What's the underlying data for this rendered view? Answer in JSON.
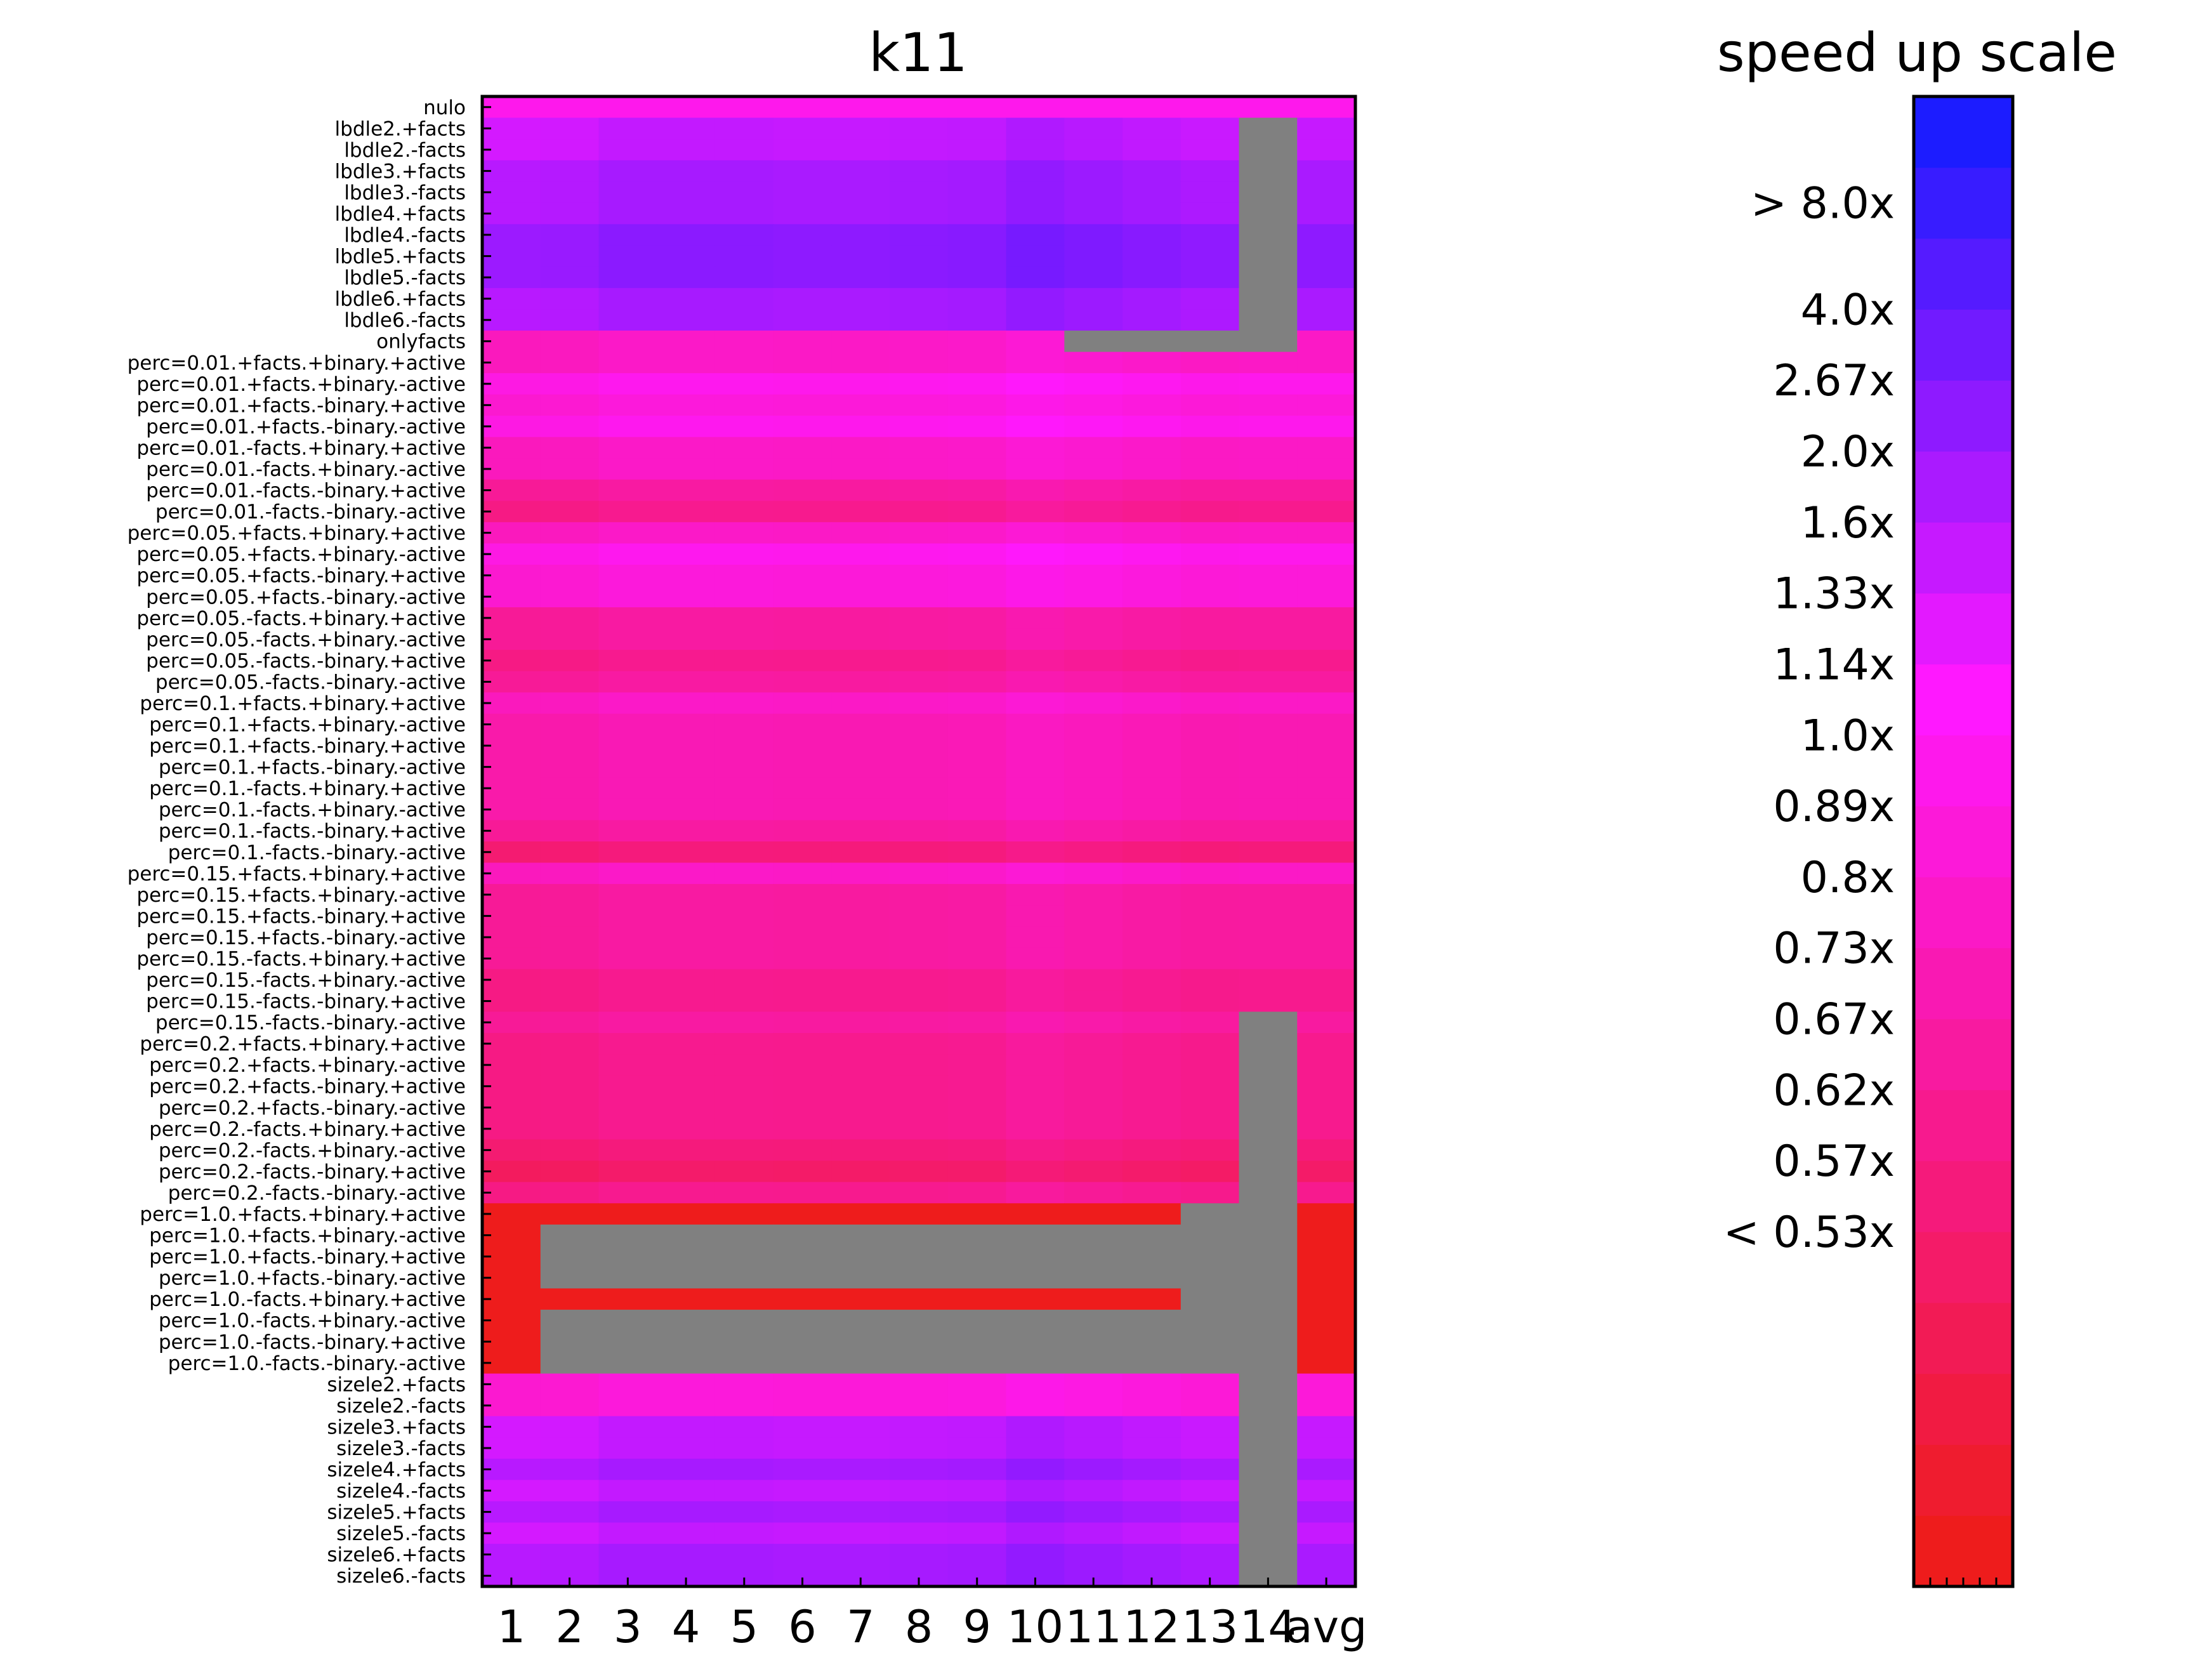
{
  "chart_data": {
    "type": "heatmap",
    "title": "k11",
    "columns": [
      "1",
      "2",
      "3",
      "4",
      "5",
      "6",
      "7",
      "8",
      "9",
      "10",
      "11",
      "12",
      "13",
      "14",
      "avg"
    ],
    "rows": [
      "nulo",
      "lbdle2.+facts",
      "lbdle2.-facts",
      "lbdle3.+facts",
      "lbdle3.-facts",
      "lbdle4.+facts",
      "lbdle4.-facts",
      "lbdle5.+facts",
      "lbdle5.-facts",
      "lbdle6.+facts",
      "lbdle6.-facts",
      "onlyfacts",
      "perc=0.01.+facts.+binary.+active",
      "perc=0.01.+facts.+binary.-active",
      "perc=0.01.+facts.-binary.+active",
      "perc=0.01.+facts.-binary.-active",
      "perc=0.01.-facts.+binary.+active",
      "perc=0.01.-facts.+binary.-active",
      "perc=0.01.-facts.-binary.+active",
      "perc=0.01.-facts.-binary.-active",
      "perc=0.05.+facts.+binary.+active",
      "perc=0.05.+facts.+binary.-active",
      "perc=0.05.+facts.-binary.+active",
      "perc=0.05.+facts.-binary.-active",
      "perc=0.05.-facts.+binary.+active",
      "perc=0.05.-facts.+binary.-active",
      "perc=0.05.-facts.-binary.+active",
      "perc=0.05.-facts.-binary.-active",
      "perc=0.1.+facts.+binary.+active",
      "perc=0.1.+facts.+binary.-active",
      "perc=0.1.+facts.-binary.+active",
      "perc=0.1.+facts.-binary.-active",
      "perc=0.1.-facts.+binary.+active",
      "perc=0.1.-facts.+binary.-active",
      "perc=0.1.-facts.-binary.+active",
      "perc=0.1.-facts.-binary.-active",
      "perc=0.15.+facts.+binary.+active",
      "perc=0.15.+facts.+binary.-active",
      "perc=0.15.+facts.-binary.+active",
      "perc=0.15.+facts.-binary.-active",
      "perc=0.15.-facts.+binary.+active",
      "perc=0.15.-facts.+binary.-active",
      "perc=0.15.-facts.-binary.+active",
      "perc=0.15.-facts.-binary.-active",
      "perc=0.2.+facts.+binary.+active",
      "perc=0.2.+facts.+binary.-active",
      "perc=0.2.+facts.-binary.+active",
      "perc=0.2.+facts.-binary.-active",
      "perc=0.2.-facts.+binary.+active",
      "perc=0.2.-facts.+binary.-active",
      "perc=0.2.-facts.-binary.+active",
      "perc=0.2.-facts.-binary.-active",
      "perc=1.0.+facts.+binary.+active",
      "perc=1.0.+facts.+binary.-active",
      "perc=1.0.+facts.-binary.+active",
      "perc=1.0.+facts.-binary.-active",
      "perc=1.0.-facts.+binary.+active",
      "perc=1.0.-facts.+binary.-active",
      "perc=1.0.-facts.-binary.+active",
      "perc=1.0.-facts.-binary.-active",
      "sizele2.+facts",
      "sizele2.-facts",
      "sizele3.+facts",
      "sizele3.-facts",
      "sizele4.+facts",
      "sizele4.-facts",
      "sizele5.+facts",
      "sizele5.-facts",
      "sizele6.+facts",
      "sizele6.-facts"
    ],
    "row_levels": [
      9,
      14,
      14,
      15,
      15,
      15,
      16,
      16,
      16,
      15,
      15,
      9,
      9,
      11,
      10,
      11,
      9,
      9,
      7,
      6,
      9,
      11,
      10,
      10,
      7,
      7,
      6,
      7,
      9,
      8,
      8,
      8,
      8,
      8,
      7,
      5,
      9,
      7,
      7,
      7,
      7,
      6,
      6,
      7,
      6,
      6,
      6,
      6,
      6,
      5,
      4,
      6,
      0,
      0,
      0,
      0,
      0,
      0,
      0,
      0,
      10,
      10,
      14,
      14,
      15,
      14,
      15,
      14,
      15,
      15
    ],
    "col_offsets": [
      -0.5,
      -0.4,
      0.1,
      0.1,
      0.1,
      0,
      0,
      0.1,
      0.2,
      0.8,
      0.5,
      0.2,
      -0.1,
      0,
      0
    ],
    "missing_cells": [
      {
        "rows": [
          1,
          10
        ],
        "cols": [
          13,
          13
        ]
      },
      {
        "rows": [
          11,
          11
        ],
        "cols": [
          10,
          13
        ]
      },
      {
        "rows": [
          43,
          51
        ],
        "cols": [
          13,
          13
        ]
      },
      {
        "rows": [
          52,
          52
        ],
        "cols": [
          12,
          13
        ]
      },
      {
        "rows": [
          53,
          55
        ],
        "cols": [
          1,
          13
        ]
      },
      {
        "rows": [
          56,
          56
        ],
        "cols": [
          12,
          13
        ]
      },
      {
        "rows": [
          57,
          59
        ],
        "cols": [
          1,
          13
        ]
      },
      {
        "rows": [
          60,
          69
        ],
        "cols": [
          13,
          13
        ]
      }
    ],
    "value_scale_unit": "colorbar step index (0 = < 0.53x, 20 = > 8.0x)",
    "colorbar": {
      "title": "speed up scale",
      "levels": 21,
      "ticks": [
        {
          "level": 19.5,
          "label": "> 8.0x"
        },
        {
          "level": 18,
          "label": "4.0x"
        },
        {
          "level": 17,
          "label": "2.67x"
        },
        {
          "level": 16,
          "label": "2.0x"
        },
        {
          "level": 15,
          "label": "1.6x"
        },
        {
          "level": 14,
          "label": "1.33x"
        },
        {
          "level": 13,
          "label": "1.14x"
        },
        {
          "level": 12,
          "label": "1.0x"
        },
        {
          "level": 11,
          "label": "0.89x"
        },
        {
          "level": 10,
          "label": "0.8x"
        },
        {
          "level": 9,
          "label": "0.73x"
        },
        {
          "level": 8,
          "label": "0.67x"
        },
        {
          "level": 7,
          "label": "0.62x"
        },
        {
          "level": 6,
          "label": "0.57x"
        },
        {
          "level": 5,
          "label": "< 0.53x"
        }
      ],
      "low_color": "#ee1c1c",
      "mid_color": "#ff18ff",
      "high_color": "#1c1cff"
    },
    "missing_color": "#808080"
  }
}
